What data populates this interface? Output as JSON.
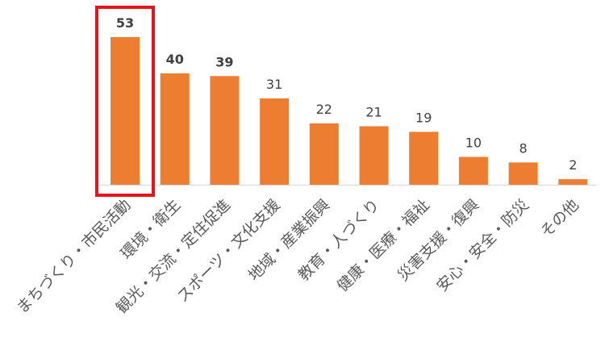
{
  "chart_data": {
    "type": "bar",
    "title": "",
    "xlabel": "",
    "ylabel": "",
    "ylim": [
      0,
      55
    ],
    "grid": false,
    "legend": "none",
    "bar_color": "#ED7D31",
    "highlight_color": "#E8141B",
    "highlighted_category_index": 0,
    "bold_value_indices": [
      0,
      1,
      2
    ],
    "categories": [
      "まちづくり・市民活動",
      "環境・衛生",
      "観光・交流・定住促進",
      "スポーツ・文化支援",
      "地域・産業振興",
      "教育・人づくり",
      "健康・医療・福祉",
      "災害支援・復興",
      "安心・安全・防災",
      "その他"
    ],
    "values": [
      53,
      40,
      39,
      31,
      22,
      21,
      19,
      10,
      8,
      2
    ]
  }
}
